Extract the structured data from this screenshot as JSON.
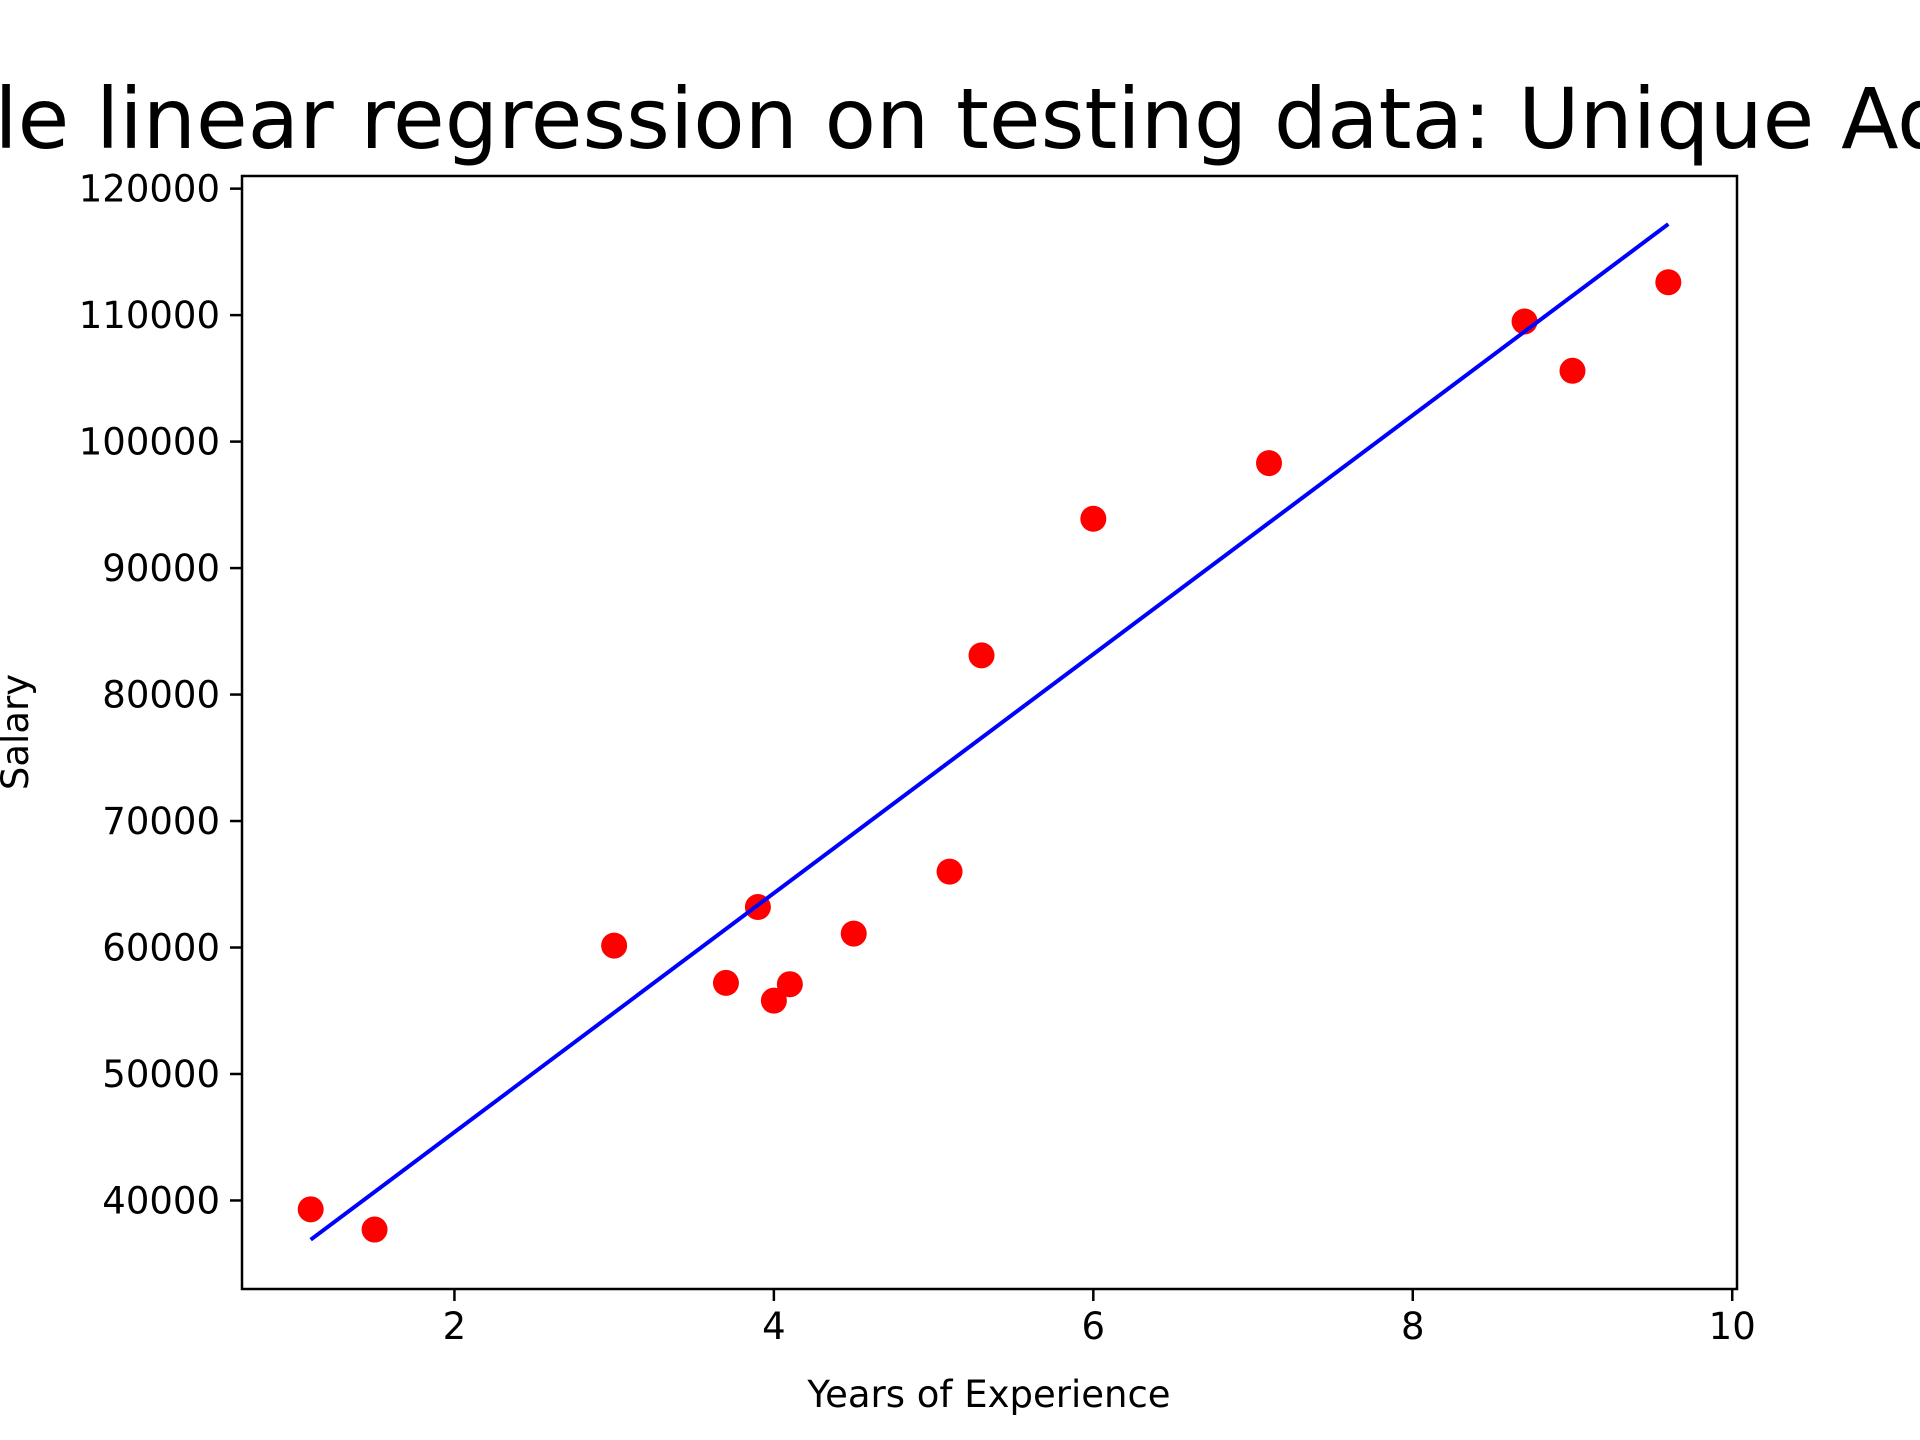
{
  "chart_data": {
    "type": "scatter",
    "title": "Simple linear regression on testing data: Unique Adhikari",
    "xlabel": "Years of Experience",
    "ylabel": "Salary",
    "xlim": [
      0.67,
      10.03
    ],
    "ylim": [
      33000,
      121000
    ],
    "xticks": [
      2,
      4,
      6,
      8,
      10
    ],
    "yticks": [
      40000,
      50000,
      60000,
      70000,
      80000,
      90000,
      100000,
      110000,
      120000
    ],
    "grid": false,
    "legend": "none",
    "series": [
      {
        "kind": "scatter",
        "color": "#ff0000",
        "points": [
          {
            "x": 1.1,
            "y": 39300
          },
          {
            "x": 1.5,
            "y": 37700
          },
          {
            "x": 3.0,
            "y": 60150
          },
          {
            "x": 3.7,
            "y": 57200
          },
          {
            "x": 3.9,
            "y": 63200
          },
          {
            "x": 4.0,
            "y": 55800
          },
          {
            "x": 4.1,
            "y": 57100
          },
          {
            "x": 4.5,
            "y": 61100
          },
          {
            "x": 5.1,
            "y": 66000
          },
          {
            "x": 5.3,
            "y": 83100
          },
          {
            "x": 6.0,
            "y": 93900
          },
          {
            "x": 7.1,
            "y": 98300
          },
          {
            "x": 8.7,
            "y": 109500
          },
          {
            "x": 9.0,
            "y": 105600
          },
          {
            "x": 9.6,
            "y": 112600
          }
        ]
      },
      {
        "kind": "line",
        "color": "#0000ff",
        "points": [
          {
            "x": 1.1,
            "y": 36900
          },
          {
            "x": 9.6,
            "y": 117200
          }
        ]
      }
    ]
  }
}
